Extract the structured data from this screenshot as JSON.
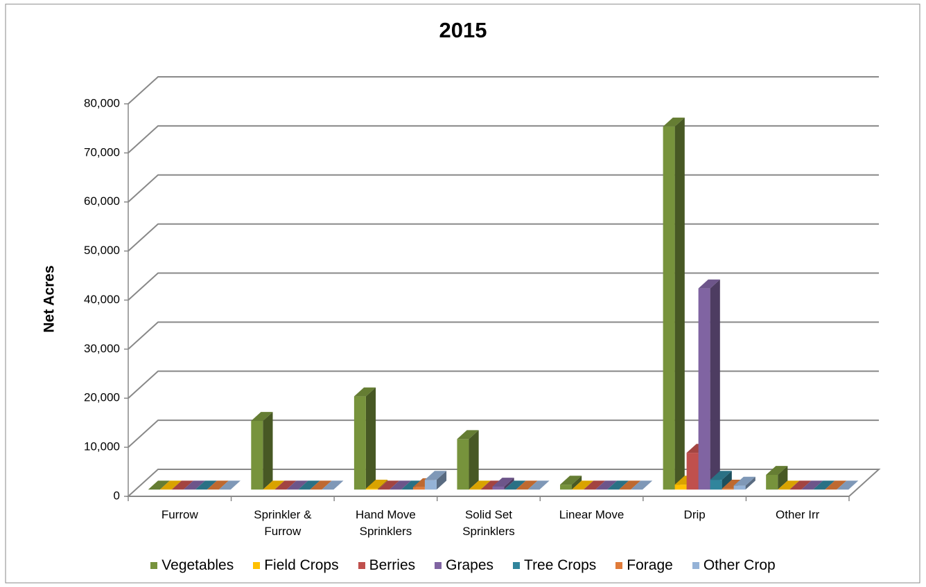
{
  "chart_data": {
    "type": "bar3d",
    "title": "2015",
    "ylabel": "Net Acres",
    "categories": [
      "Furrow",
      "Sprinkler & Furrow",
      "Hand Move Sprinklers",
      "Solid Set Sprinklers",
      "Linear Move",
      "Drip",
      "Other Irr"
    ],
    "series": [
      {
        "name": "Vegetables",
        "color": "#77933c",
        "values": [
          0,
          14000,
          19000,
          10300,
          1000,
          74000,
          3000
        ]
      },
      {
        "name": "Field Crops",
        "color": "#ffc000",
        "values": [
          0,
          0,
          200,
          0,
          0,
          1000,
          0
        ]
      },
      {
        "name": "Berries",
        "color": "#c0504d",
        "values": [
          0,
          0,
          0,
          0,
          0,
          7500,
          0
        ]
      },
      {
        "name": "Grapes",
        "color": "#8064a2",
        "values": [
          0,
          0,
          0,
          600,
          0,
          41000,
          0
        ]
      },
      {
        "name": "Tree Crops",
        "color": "#31859c",
        "values": [
          0,
          0,
          0,
          0,
          0,
          2000,
          0
        ]
      },
      {
        "name": "Forage",
        "color": "#e07b39",
        "values": [
          0,
          0,
          500,
          0,
          0,
          200,
          0
        ]
      },
      {
        "name": "Other Crop",
        "color": "#95b3d7",
        "values": [
          0,
          0,
          2000,
          0,
          0,
          800,
          0
        ]
      }
    ],
    "ylim": [
      0,
      80000
    ],
    "yticks": [
      0,
      {
        "value": 10000,
        "label": "10,000"
      },
      {
        "value": 20000,
        "label": "20,000"
      },
      {
        "value": 30000,
        "label": "30,000"
      },
      {
        "value": 40000,
        "label": "40,000"
      },
      {
        "value": 50000,
        "label": "50,000"
      },
      {
        "value": 60000,
        "label": "60,000"
      },
      {
        "value": 70000,
        "label": "70,000"
      },
      {
        "value": 80000,
        "label": "80,000"
      }
    ],
    "grid": true,
    "legend": "bottom"
  }
}
